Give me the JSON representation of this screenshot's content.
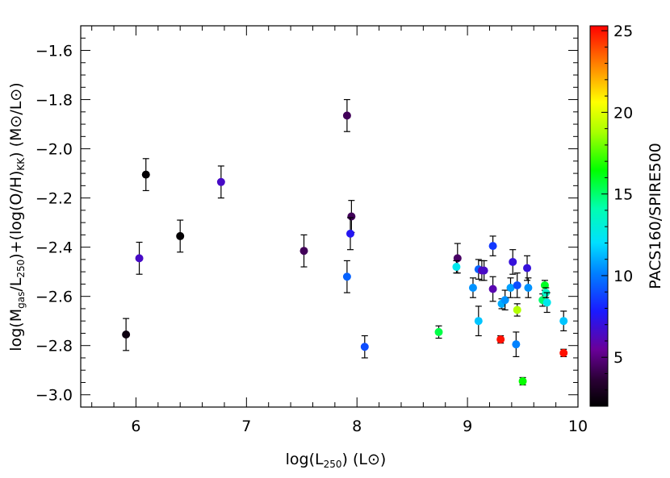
{
  "chart_data": {
    "type": "scatter",
    "title": "",
    "xlabel": {
      "prefix": "log(L",
      "sub": "250",
      "suffix": ")  (L",
      "unit_symbol": "⊙",
      "end": ")"
    },
    "ylabel": {
      "p1": "log(M",
      "s1": "gas",
      "p2": "/L",
      "s2": "250",
      "p3": ")+(log(O/H)",
      "s3": "KK",
      "p4": ")  (M",
      "sym1": "⊙",
      "p5": "/L",
      "sym2": "⊙",
      "p6": ")"
    },
    "xlim": [
      5.5,
      10.0
    ],
    "ylim": [
      -3.05,
      -1.5
    ],
    "x_ticks": [
      6,
      7,
      8,
      9,
      10
    ],
    "x_tick_labels": [
      "6",
      "7",
      "8",
      "9",
      "10"
    ],
    "y_ticks": [
      -3.0,
      -2.8,
      -2.6,
      -2.4,
      -2.2,
      -2.0,
      -1.8,
      -1.6
    ],
    "y_tick_labels": [
      "−3.0",
      "−2.8",
      "−2.6",
      "−2.4",
      "−2.2",
      "−2.0",
      "−1.8",
      "−1.6"
    ],
    "colorbar": {
      "label": "PACS160/SPIRE500",
      "range": [
        2,
        25.3
      ],
      "ticks": [
        5,
        10,
        15,
        20,
        25
      ],
      "tick_labels": [
        "5",
        "10",
        "15",
        "20",
        "25"
      ],
      "colormap": "rainbow"
    },
    "points": [
      {
        "x": 5.91,
        "y": -2.755,
        "err": 0.065,
        "c": 2.5
      },
      {
        "x": 6.03,
        "y": -2.445,
        "err": 0.065,
        "c": 6.5
      },
      {
        "x": 6.09,
        "y": -2.105,
        "err": 0.065,
        "c": 2.1
      },
      {
        "x": 6.4,
        "y": -2.355,
        "err": 0.065,
        "c": 2.1
      },
      {
        "x": 6.77,
        "y": -2.135,
        "err": 0.065,
        "c": 6.5
      },
      {
        "x": 7.52,
        "y": -2.415,
        "err": 0.065,
        "c": 4.3
      },
      {
        "x": 7.91,
        "y": -1.865,
        "err": 0.065,
        "c": 4.3
      },
      {
        "x": 7.95,
        "y": -2.275,
        "err": 0.065,
        "c": 4.3
      },
      {
        "x": 7.94,
        "y": -2.345,
        "err": 0.065,
        "c": 7.5
      },
      {
        "x": 7.91,
        "y": -2.52,
        "err": 0.065,
        "c": 9.5
      },
      {
        "x": 8.07,
        "y": -2.805,
        "err": 0.045,
        "c": 9.0
      },
      {
        "x": 8.74,
        "y": -2.745,
        "err": 0.025,
        "c": 15.5
      },
      {
        "x": 8.91,
        "y": -2.445,
        "err": 0.06,
        "c": 4.5
      },
      {
        "x": 8.9,
        "y": -2.48,
        "err": 0.025,
        "c": 12.5
      },
      {
        "x": 9.05,
        "y": -2.565,
        "err": 0.04,
        "c": 10.5
      },
      {
        "x": 9.1,
        "y": -2.49,
        "err": 0.04,
        "c": 9.5
      },
      {
        "x": 9.13,
        "y": -2.495,
        "err": 0.04,
        "c": 6.0
      },
      {
        "x": 9.15,
        "y": -2.495,
        "err": 0.04,
        "c": 6.5
      },
      {
        "x": 9.1,
        "y": -2.7,
        "err": 0.06,
        "c": 11.5
      },
      {
        "x": 9.23,
        "y": -2.395,
        "err": 0.04,
        "c": 8.5
      },
      {
        "x": 9.23,
        "y": -2.57,
        "err": 0.05,
        "c": 6.0
      },
      {
        "x": 9.3,
        "y": -2.775,
        "err": 0.015,
        "c": 25.0
      },
      {
        "x": 9.31,
        "y": -2.63,
        "err": 0.02,
        "c": 11.0
      },
      {
        "x": 9.34,
        "y": -2.615,
        "err": 0.04,
        "c": 10.5
      },
      {
        "x": 9.39,
        "y": -2.565,
        "err": 0.04,
        "c": 10.8
      },
      {
        "x": 9.41,
        "y": -2.46,
        "err": 0.05,
        "c": 7.0
      },
      {
        "x": 9.45,
        "y": -2.555,
        "err": 0.05,
        "c": 9.0
      },
      {
        "x": 9.45,
        "y": -2.655,
        "err": 0.025,
        "c": 19.0
      },
      {
        "x": 9.44,
        "y": -2.795,
        "err": 0.05,
        "c": 10.2
      },
      {
        "x": 9.5,
        "y": -2.945,
        "err": 0.015,
        "c": 16.5
      },
      {
        "x": 9.54,
        "y": -2.485,
        "err": 0.05,
        "c": 7.0
      },
      {
        "x": 9.55,
        "y": -2.565,
        "err": 0.04,
        "c": 10.5
      },
      {
        "x": 9.68,
        "y": -2.615,
        "err": 0.025,
        "c": 15.0
      },
      {
        "x": 9.7,
        "y": -2.555,
        "err": 0.02,
        "c": 16.0
      },
      {
        "x": 9.71,
        "y": -2.585,
        "err": 0.02,
        "c": 13.5
      },
      {
        "x": 9.72,
        "y": -2.625,
        "err": 0.04,
        "c": 12.5
      },
      {
        "x": 9.87,
        "y": -2.7,
        "err": 0.04,
        "c": 11.5
      },
      {
        "x": 9.87,
        "y": -2.83,
        "err": 0.015,
        "c": 25.0
      }
    ]
  }
}
